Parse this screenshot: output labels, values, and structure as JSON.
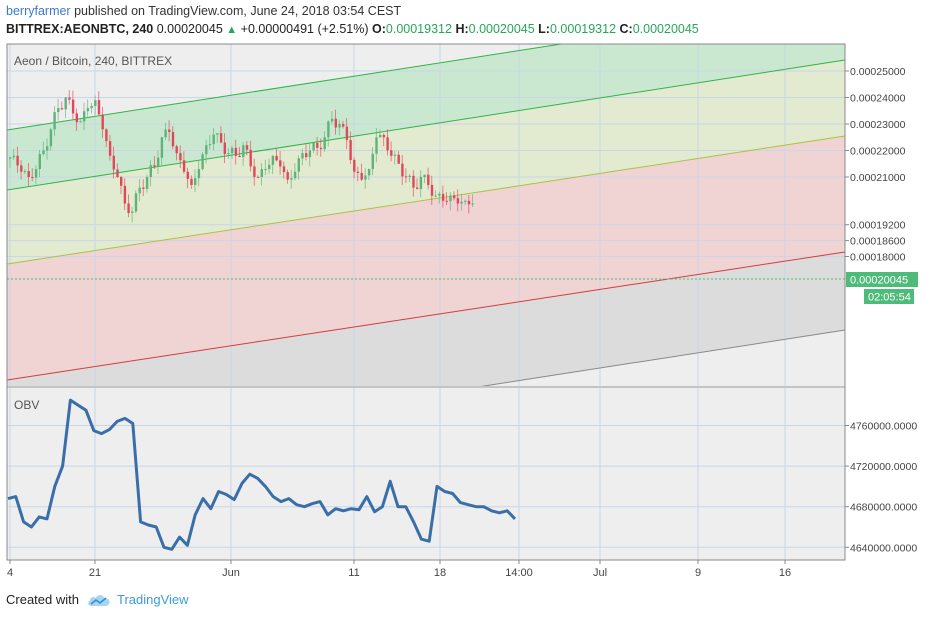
{
  "header": {
    "user": "berryfarmer",
    "published": "published on TradingView.com, June 24, 2018 03:54 CEST",
    "symbol": "BITTREX:AEONBTC, 240",
    "last": "0.00020045",
    "change": "+0.00000491 (+2.51%)",
    "o_label": "O:",
    "o": "0.00019312",
    "h_label": "H:",
    "h": "0.00020045",
    "l_label": "L:",
    "l": "0.00019312",
    "c_label": "C:",
    "c": "0.00020045"
  },
  "footer": {
    "created": "Created with",
    "brand": "TradingView"
  },
  "colors": {
    "up": "#5fb37a",
    "down": "#e0485a",
    "obv": "#3a6ea8",
    "price_tag": "#4fbb7a"
  },
  "chart_data": [
    {
      "type": "candlestick",
      "title": "Aeon / Bitcoin, 240, BITTREX",
      "y_ticks": [
        "0.00025000",
        "0.00024000",
        "0.00023000",
        "0.00022000",
        "0.00021000",
        "0.00019200",
        "0.00018600",
        "0.00018000"
      ],
      "y_tick_values": [
        0.00025,
        0.00024,
        0.00023,
        0.00022,
        0.00021,
        0.000192,
        0.000186,
        0.00018
      ],
      "x_ticks": [
        "4",
        "21",
        "Jun",
        "11",
        "18",
        "14:00",
        "Jul",
        "9",
        "16"
      ],
      "last_price_label": "0.00020045",
      "countdown_label": "02:05:54",
      "close_series": [
        0.000218,
        0.000212,
        0.00021,
        0.000213,
        0.00022,
        0.000228,
        0.000236,
        0.00024,
        0.000234,
        0.000231,
        0.000236,
        0.000239,
        0.000228,
        0.000218,
        0.00021,
        0.0002,
        0.000197,
        0.000206,
        0.00021,
        0.000214,
        0.000225,
        0.000227,
        0.000219,
        0.000212,
        0.000207,
        0.000213,
        0.000222,
        0.000226,
        0.000223,
        0.000219,
        0.000218,
        0.000222,
        0.000214,
        0.00021,
        0.000213,
        0.000218,
        0.000214,
        0.000209,
        0.000212,
        0.000219,
        0.00022,
        0.000221,
        0.000225,
        0.000232,
        0.00023,
        0.000224,
        0.000212,
        0.000209,
        0.000213,
        0.000225,
        0.000225,
        0.000218,
        0.000215,
        0.00021,
        0.000206,
        0.00021,
        0.000207,
        0.000203,
        0.000201,
        0.000203,
        0.0002,
        0.000201,
        0.0002
      ],
      "channel": {
        "description": "four parallel regression lines with shaded zones",
        "zone_colors": [
          "#c9e8cf",
          "#e2ead0",
          "#f0d3d3",
          "#dcdcdc"
        ]
      }
    },
    {
      "type": "line",
      "title": "OBV",
      "y_ticks": [
        "4760000.0000",
        "4720000.0000",
        "4680000.0000",
        "4640000.0000"
      ],
      "y_tick_values": [
        4760000,
        4720000,
        4680000,
        4640000
      ],
      "series": [
        4688000,
        4690000,
        4665000,
        4660000,
        4670000,
        4668000,
        4700000,
        4720000,
        4785000,
        4780000,
        4775000,
        4755000,
        4752000,
        4756000,
        4764000,
        4767000,
        4762000,
        4665000,
        4662000,
        4660000,
        4640000,
        4638000,
        4650000,
        4642000,
        4672000,
        4688000,
        4678000,
        4695000,
        4692000,
        4687000,
        4703000,
        4712000,
        4708000,
        4700000,
        4690000,
        4685000,
        4688000,
        4682000,
        4680000,
        4683000,
        4685000,
        4672000,
        4678000,
        4676000,
        4678000,
        4677000,
        4690000,
        4675000,
        4680000,
        4705000,
        4680000,
        4680000,
        4665000,
        4648000,
        4646000,
        4700000,
        4695000,
        4693000,
        4684000,
        4682000,
        4680000,
        4680000,
        4676000,
        4674000,
        4676000,
        4668000
      ]
    }
  ]
}
